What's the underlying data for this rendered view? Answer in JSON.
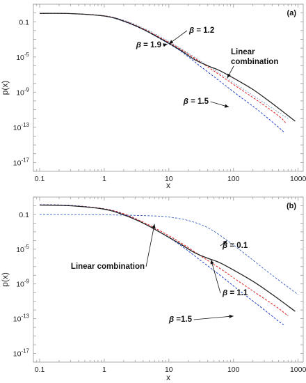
{
  "chart_data": [
    {
      "panel_label": "(a)",
      "type": "line",
      "xlabel": "x",
      "ylabel": "p(x)",
      "xscale": "log",
      "yscale": "log",
      "xlim": [
        0.08,
        1200
      ],
      "ylim": [
        1e-18,
        10
      ],
      "xticks": [
        {
          "v": 0.1,
          "t": "0.1"
        },
        {
          "v": 1,
          "t": "1"
        },
        {
          "v": 10,
          "t": "10"
        },
        {
          "v": 100,
          "t": "100"
        },
        {
          "v": 1000,
          "t": "1000"
        }
      ],
      "yticks": [
        {
          "v": 0.1,
          "base": "0.1",
          "exp": ""
        },
        {
          "v": 1e-05,
          "base": "10",
          "exp": "-5"
        },
        {
          "v": 1e-09,
          "base": "10",
          "exp": "-9"
        },
        {
          "v": 1e-13,
          "base": "10",
          "exp": "-13"
        },
        {
          "v": 1e-17,
          "base": "10",
          "exp": "-17"
        }
      ],
      "series": [
        {
          "name": "β = 1.2",
          "color": "#7a9cc6",
          "dash": "2,2",
          "width": 0.9,
          "points": [
            [
              0.1,
              0.9
            ],
            [
              0.3,
              0.85
            ],
            [
              1,
              0.5
            ],
            [
              2,
              0.15
            ],
            [
              4,
              0.02
            ],
            [
              8,
              0.0015
            ],
            [
              15,
              0.0001
            ],
            [
              30,
              4e-06
            ],
            [
              60,
              1.5e-07
            ],
            [
              120,
              5e-09
            ],
            [
              250,
              1.5e-10
            ],
            [
              500,
              5e-12
            ],
            [
              700,
              1e-12
            ]
          ]
        },
        {
          "name": "β = 1.9",
          "color": "#1f3fcf",
          "dash": "3,2",
          "width": 1.0,
          "points": [
            [
              0.1,
              0.9
            ],
            [
              0.3,
              0.85
            ],
            [
              1,
              0.45
            ],
            [
              2,
              0.11
            ],
            [
              4,
              0.013
            ],
            [
              8,
              0.0008
            ],
            [
              15,
              5e-05
            ],
            [
              30,
              1e-06
            ],
            [
              60,
              2e-08
            ],
            [
              120,
              4e-10
            ],
            [
              250,
              7e-12
            ],
            [
              500,
              1e-13
            ],
            [
              600,
              3e-14
            ]
          ]
        },
        {
          "name": "β = 1.5",
          "color": "#e01f1f",
          "dash": "3,2",
          "width": 1.0,
          "points": [
            [
              0.1,
              0.9
            ],
            [
              0.3,
              0.85
            ],
            [
              1,
              0.47
            ],
            [
              2,
              0.13
            ],
            [
              4,
              0.016
            ],
            [
              8,
              0.0011
            ],
            [
              15,
              8e-05
            ],
            [
              30,
              3e-06
            ],
            [
              60,
              1e-07
            ],
            [
              120,
              3e-09
            ],
            [
              250,
              8e-11
            ],
            [
              500,
              2e-12
            ],
            [
              650,
              3e-13
            ]
          ]
        },
        {
          "name": "Linear combination",
          "color": "#222222",
          "dash": "",
          "width": 1.3,
          "points": [
            [
              0.1,
              0.9
            ],
            [
              0.3,
              0.85
            ],
            [
              1,
              0.45
            ],
            [
              2,
              0.12
            ],
            [
              4,
              0.014
            ],
            [
              8,
              0.0009
            ],
            [
              15,
              6e-05
            ],
            [
              25,
              5e-06
            ],
            [
              40,
              1e-06
            ],
            [
              60,
              3e-07
            ],
            [
              100,
              4e-08
            ],
            [
              200,
              2e-09
            ],
            [
              400,
              5e-11
            ],
            [
              900,
              5e-13
            ]
          ]
        }
      ],
      "annotations": [
        {
          "beta": "β",
          "rest": " = 1.2",
          "lines": [],
          "anchor": "start",
          "tip": [
            10,
            0.0003
          ]
        },
        {
          "beta": "β",
          "rest": " = 1.9",
          "lines": [],
          "anchor": "end",
          "tip": [
            9.5,
            0.0003
          ]
        },
        {
          "beta": "",
          "rest": "",
          "lines": [
            "Linear",
            "combination"
          ],
          "anchor": "start",
          "tip": [
            80,
            4e-08
          ]
        },
        {
          "beta": "β",
          "rest": " = 1.5",
          "lines": [],
          "anchor": "end",
          "tip": [
            85,
            2e-11
          ]
        }
      ]
    },
    {
      "panel_label": "(b)",
      "type": "line",
      "xlabel": "x",
      "ylabel": "p(x)",
      "xscale": "log",
      "yscale": "log",
      "xlim": [
        0.08,
        1200
      ],
      "ylim": [
        1e-18,
        10
      ],
      "xticks": [
        {
          "v": 0.1,
          "t": "0.1"
        },
        {
          "v": 1,
          "t": "1"
        },
        {
          "v": 10,
          "t": "10"
        },
        {
          "v": 100,
          "t": "100"
        },
        {
          "v": 1000,
          "t": "1000"
        }
      ],
      "yticks": [
        {
          "v": 0.1,
          "base": "0.1",
          "exp": ""
        },
        {
          "v": 1e-05,
          "base": "10",
          "exp": "-5"
        },
        {
          "v": 1e-09,
          "base": "10",
          "exp": "-9"
        },
        {
          "v": 1e-13,
          "base": "10",
          "exp": "-13"
        },
        {
          "v": 1e-17,
          "base": "10",
          "exp": "-17"
        }
      ],
      "series": [
        {
          "name": "β = 0.1",
          "color": "#3a60c0",
          "dash": "3,2",
          "width": 0.9,
          "points": [
            [
              0.1,
              0.1
            ],
            [
              1,
              0.09
            ],
            [
              5,
              0.07
            ],
            [
              10,
              0.05
            ],
            [
              20,
              0.02
            ],
            [
              40,
              0.003
            ],
            [
              80,
              0.0001
            ],
            [
              150,
              3e-06
            ],
            [
              300,
              5e-08
            ],
            [
              600,
              1e-09
            ],
            [
              1000,
              6e-11
            ]
          ]
        },
        {
          "name": "β = 1.1",
          "color": "#e01f1f",
          "dash": "3,2",
          "width": 1.0,
          "points": [
            [
              0.1,
              1.3
            ],
            [
              0.3,
              1.1
            ],
            [
              1,
              0.45
            ],
            [
              2,
              0.12
            ],
            [
              4,
              0.013
            ],
            [
              8,
              0.0009
            ],
            [
              15,
              6e-05
            ],
            [
              30,
              2e-06
            ],
            [
              60,
              7e-08
            ],
            [
              120,
              2e-09
            ],
            [
              250,
              5e-11
            ],
            [
              500,
              1.5e-12
            ],
            [
              700,
              2e-13
            ]
          ]
        },
        {
          "name": "β = 1.5",
          "color": "#1f3fcf",
          "dash": "3,2",
          "width": 1.0,
          "points": [
            [
              0.1,
              1.3
            ],
            [
              0.3,
              1.1
            ],
            [
              1,
              0.42
            ],
            [
              2,
              0.1
            ],
            [
              4,
              0.01
            ],
            [
              8,
              0.0006
            ],
            [
              15,
              3e-05
            ],
            [
              30,
              6e-07
            ],
            [
              60,
              1.2e-08
            ],
            [
              120,
              2e-10
            ],
            [
              250,
              3e-12
            ],
            [
              500,
              5e-14
            ],
            [
              600,
              2e-14
            ]
          ]
        },
        {
          "name": "Linear combination",
          "color": "#222222",
          "dash": "",
          "width": 1.3,
          "points": [
            [
              0.1,
              1.2
            ],
            [
              0.3,
              1.0
            ],
            [
              1,
              0.4
            ],
            [
              2,
              0.09
            ],
            [
              4,
              0.01
            ],
            [
              8,
              0.0006
            ],
            [
              15,
              4e-05
            ],
            [
              25,
              4e-06
            ],
            [
              40,
              9e-07
            ],
            [
              60,
              3e-07
            ],
            [
              100,
              4e-08
            ],
            [
              200,
              2e-09
            ],
            [
              400,
              6e-11
            ],
            [
              900,
              7e-13
            ]
          ]
        }
      ],
      "annotations": [
        {
          "beta": "β",
          "rest": " = 0.1",
          "lines": [],
          "anchor": "start",
          "tip": [
            80,
            0.0001
          ]
        },
        {
          "beta": "",
          "rest": "",
          "lines": [
            "Linear combination"
          ],
          "anchor": "end",
          "tip": [
            6,
            0.008
          ]
        },
        {
          "beta": "β",
          "rest": " = 1.1",
          "lines": [],
          "anchor": "start",
          "tip": [
            45,
            6e-07
          ]
        },
        {
          "beta": "β",
          "rest": " =1.5",
          "lines": [],
          "anchor": "end",
          "tip": [
            100,
            2e-13
          ]
        }
      ]
    }
  ]
}
